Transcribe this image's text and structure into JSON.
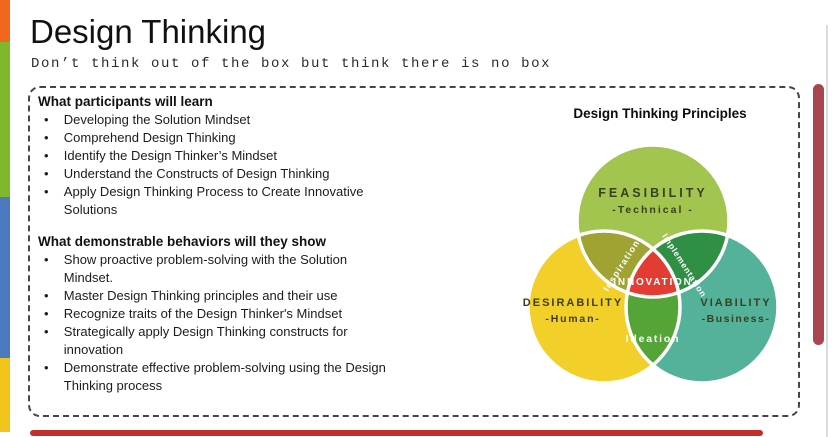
{
  "slide": {
    "title": "Design Thinking",
    "subtitle": "Don’t think out of the box but think there is no box"
  },
  "panel": {
    "sections": [
      {
        "heading": "What participants will learn",
        "items": [
          "Developing the Solution Mindset",
          "Comprehend Design Thinking",
          "Identify the Design Thinker’s Mindset",
          "Understand the Constructs of Design Thinking",
          "Apply Design Thinking Process to Create Innovative Solutions"
        ]
      },
      {
        "heading": "What demonstrable behaviors will they show",
        "items": [
          "Show proactive problem-solving with the Solution Mindset.",
          "Master Design Thinking principles and their use",
          "Recognize traits of the Design Thinker's Mindset",
          "Strategically apply Design Thinking constructs for innovation",
          "Demonstrate effective problem-solving using the Design Thinking process"
        ]
      }
    ]
  },
  "venn": {
    "title": "Design Thinking Principles",
    "circles": [
      {
        "label": "FEASIBILITY",
        "sublabel": "-Technical -",
        "color": "#a2c54f"
      },
      {
        "label": "DESIRABILITY",
        "sublabel": "-Human-",
        "color": "#f3cf2a"
      },
      {
        "label": "VIABILITY",
        "sublabel": "-Business-",
        "color": "#54b29a"
      }
    ],
    "overlaps": {
      "inspiration": {
        "label": "Inspiration",
        "color": "#a0a232"
      },
      "implementation": {
        "label": "Implementation",
        "color": "#2f9045"
      },
      "ideation": {
        "label": "Ideation",
        "color": "#55a437"
      },
      "innovation": {
        "label": "INNOVATION",
        "color": "#e23c33"
      }
    }
  },
  "decorations": {
    "left_bar_colors": [
      "#f0681f",
      "#7fb82c",
      "#4a79bd",
      "#f2c318"
    ],
    "vertical_scrollbar_color": "#a8454f",
    "horizontal_scrollbar_color": "#c0302c"
  }
}
